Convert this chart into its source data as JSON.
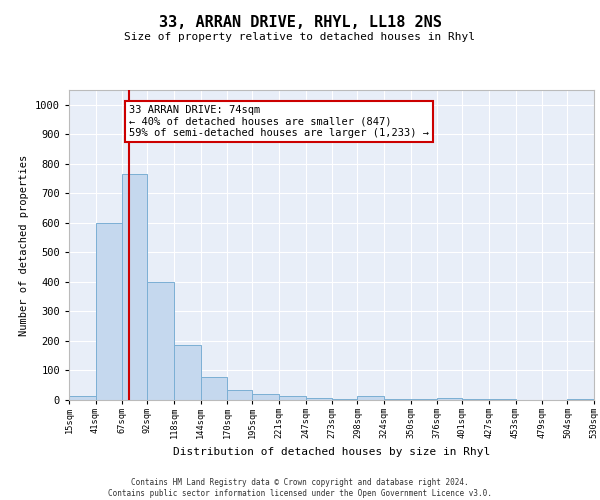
{
  "title": "33, ARRAN DRIVE, RHYL, LL18 2NS",
  "subtitle": "Size of property relative to detached houses in Rhyl",
  "xlabel": "Distribution of detached houses by size in Rhyl",
  "ylabel": "Number of detached properties",
  "footer_line1": "Contains HM Land Registry data © Crown copyright and database right 2024.",
  "footer_line2": "Contains public sector information licensed under the Open Government Licence v3.0.",
  "bin_edges": [
    15,
    41,
    67,
    92,
    118,
    144,
    170,
    195,
    221,
    247,
    273,
    298,
    324,
    350,
    376,
    401,
    427,
    453,
    479,
    504,
    530
  ],
  "bar_heights": [
    15,
    600,
    765,
    400,
    185,
    78,
    35,
    20,
    12,
    8,
    5,
    12,
    5,
    3,
    8,
    5,
    3,
    1,
    1,
    3,
    1
  ],
  "bar_color": "#c5d8ee",
  "bar_edge_color": "#7bafd4",
  "property_size": 74,
  "red_line_color": "#cc0000",
  "annotation_text": "33 ARRAN DRIVE: 74sqm\n← 40% of detached houses are smaller (847)\n59% of semi-detached houses are larger (1,233) →",
  "annotation_box_color": "#ffffff",
  "annotation_box_edge_color": "#cc0000",
  "ylim": [
    0,
    1050
  ],
  "background_color": "#e8eef8",
  "grid_color": "#ffffff",
  "tick_labels": [
    "15sqm",
    "41sqm",
    "67sqm",
    "92sqm",
    "118sqm",
    "144sqm",
    "170sqm",
    "195sqm",
    "221sqm",
    "247sqm",
    "273sqm",
    "298sqm",
    "324sqm",
    "350sqm",
    "376sqm",
    "401sqm",
    "427sqm",
    "453sqm",
    "479sqm",
    "504sqm",
    "530sqm"
  ]
}
